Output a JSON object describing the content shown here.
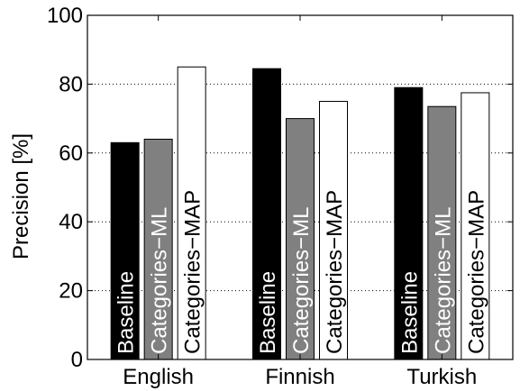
{
  "chart_data": {
    "type": "bar",
    "ylabel": "Precision [%]",
    "xlabel": "",
    "title": "",
    "ylim": [
      0,
      100
    ],
    "yticks": [
      0,
      20,
      40,
      60,
      80,
      100
    ],
    "grid": "horizontal dotted",
    "categories": [
      "English",
      "Finnish",
      "Turkish"
    ],
    "series": [
      {
        "name": "Baseline",
        "color": "#000000",
        "text_color": "#ffffff",
        "values": [
          63,
          84.5,
          79
        ]
      },
      {
        "name": "Categories−ML",
        "color": "#808080",
        "text_color": "#ffffff",
        "values": [
          64,
          70,
          73.5
        ]
      },
      {
        "name": "Categories−MAP",
        "color": "#ffffff",
        "text_color": "#000000",
        "values": [
          85,
          75,
          77.5
        ]
      }
    ]
  }
}
